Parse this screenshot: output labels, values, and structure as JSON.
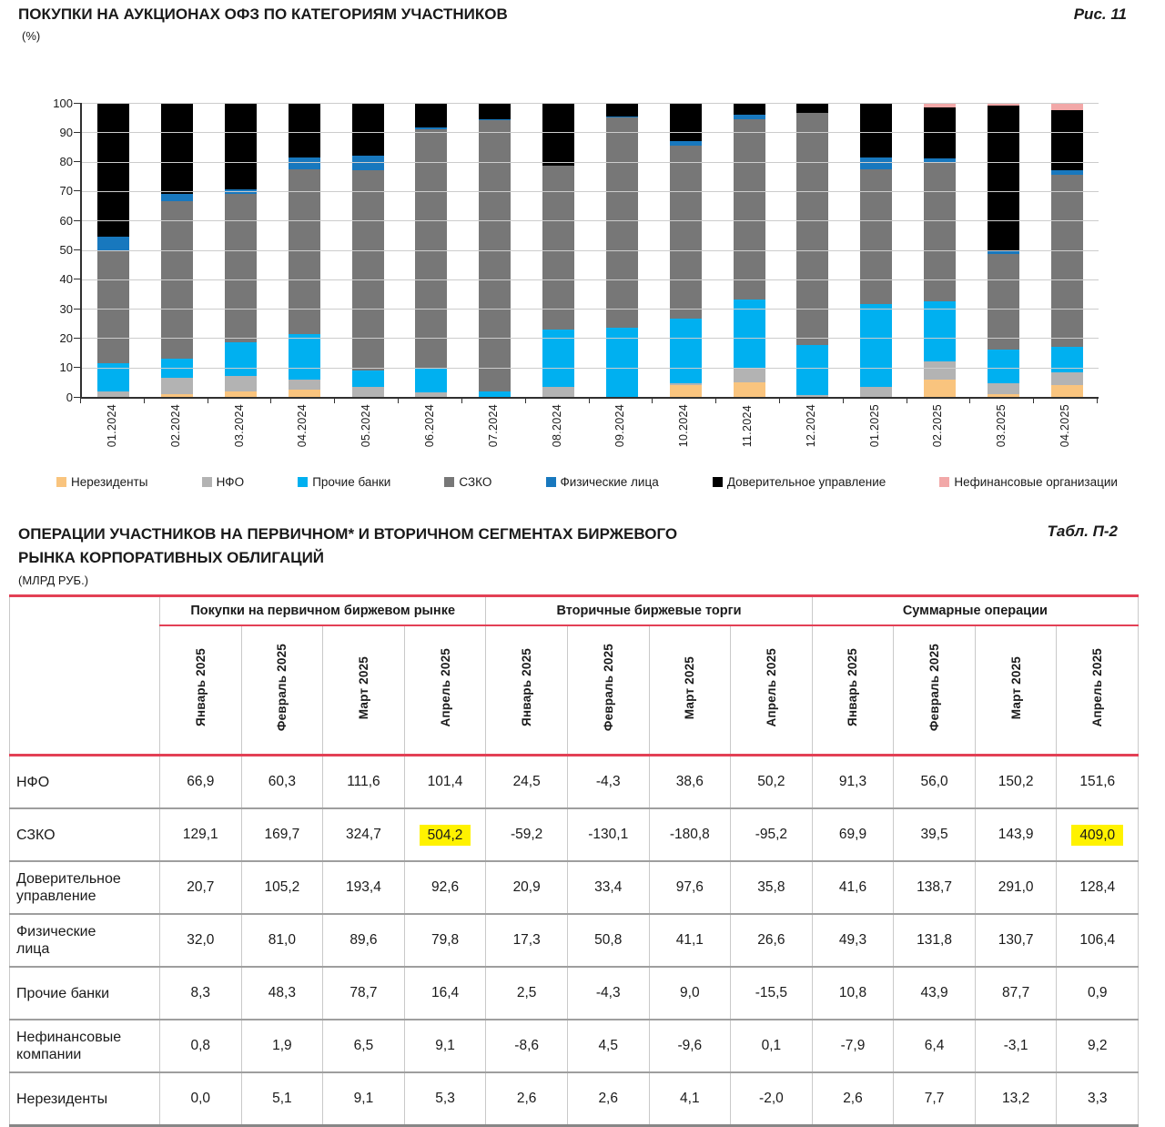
{
  "colors": {
    "accent_red": "#E34055",
    "highlight_yellow": "#FFF200",
    "grid": "#CCCCCC",
    "axis": "#303030"
  },
  "figure": {
    "title": "ПОКУПКИ НА АУКЦИОНАХ ОФЗ ПО КАТЕГОРИЯМ УЧАСТНИКОВ",
    "subtitle": "(%)",
    "ref": "Рис. 11"
  },
  "chart_data": {
    "type": "bar",
    "stacked": true,
    "title": "ПОКУПКИ НА АУКЦИОНАХ ОФЗ ПО КАТЕГОРИЯМ УЧАСТНИКОВ",
    "ylabel": "%",
    "ylim": [
      0,
      100
    ],
    "yticks": [
      0,
      10,
      20,
      30,
      40,
      50,
      60,
      70,
      80,
      90,
      100
    ],
    "grid": true,
    "legend_position": "bottom",
    "categories": [
      "01.2024",
      "02.2024",
      "03.2024",
      "04.2024",
      "05.2024",
      "06.2024",
      "07.2024",
      "08.2024",
      "09.2024",
      "10.2024",
      "11.2024",
      "12.2024",
      "01.2025",
      "02.2025",
      "03.2025",
      "04.2025"
    ],
    "series": [
      {
        "name": "Нерезиденты",
        "color": "#F9C47E",
        "values": [
          0,
          1,
          2,
          2.5,
          0,
          0,
          0,
          0,
          0,
          4,
          5,
          0,
          0,
          6,
          1,
          4
        ]
      },
      {
        "name": "НФО",
        "color": "#B3B3B3",
        "values": [
          2,
          5.5,
          5,
          3.5,
          3.5,
          1.5,
          0,
          3.5,
          0,
          0.5,
          5,
          0.5,
          3.5,
          6,
          3.5,
          4.5
        ]
      },
      {
        "name": "Прочие банки",
        "color": "#00B0F0",
        "values": [
          9.5,
          6.5,
          11.5,
          15.5,
          5.5,
          8,
          2,
          19.5,
          23.5,
          22,
          23,
          17,
          28,
          20.5,
          11.5,
          8.5
        ]
      },
      {
        "name": "СЗКО",
        "color": "#777777",
        "values": [
          38,
          53.5,
          50.5,
          56,
          68,
          81.5,
          92,
          55.5,
          71.5,
          59,
          61.5,
          79,
          46,
          47.5,
          32.5,
          58.5
        ]
      },
      {
        "name": "Физические лица",
        "color": "#1878BE",
        "values": [
          5,
          2.5,
          1.5,
          4,
          5,
          0.5,
          0.5,
          0,
          0.5,
          1.5,
          1.5,
          0,
          4,
          1,
          1,
          1.5
        ]
      },
      {
        "name": "Доверительное управление",
        "color": "#000000",
        "values": [
          45.5,
          31,
          29.5,
          18.5,
          18,
          8.5,
          5.5,
          21.5,
          4.5,
          13,
          4,
          3.5,
          18.5,
          17.5,
          49.5,
          20.5
        ]
      },
      {
        "name": "Нефинансовые организации",
        "color": "#F2A8A8",
        "values": [
          0,
          0,
          0,
          0,
          0,
          0,
          0,
          0,
          0,
          0,
          0,
          0,
          0,
          1.5,
          1,
          2.5
        ]
      }
    ]
  },
  "table": {
    "title_line1": "ОПЕРАЦИИ УЧАСТНИКОВ НА ПЕРВИЧНОМ* И ВТОРИЧНОМ СЕГМЕНТАХ БИРЖЕВОГО",
    "title_line2": "РЫНКА КОРПОРАТИВНЫХ ОБЛИГАЦИЙ",
    "units": "(МЛРД РУБ.)",
    "ref": "Табл. П-2",
    "groups": [
      "Покупки на первичном биржевом рынке",
      "Вторичные биржевые торги",
      "Суммарные операции"
    ],
    "months": [
      "Январь 2025",
      "Февраль 2025",
      "Март 2025",
      "Апрель 2025"
    ],
    "rows": [
      {
        "label": "НФО",
        "values": [
          "66,9",
          "60,3",
          "111,6",
          "101,4",
          "24,5",
          "-4,3",
          "38,6",
          "50,2",
          "91,3",
          "56,0",
          "150,2",
          "151,6"
        ],
        "highlight": []
      },
      {
        "label": "СЗКО",
        "values": [
          "129,1",
          "169,7",
          "324,7",
          "504,2",
          "-59,2",
          "-130,1",
          "-180,8",
          "-95,2",
          "69,9",
          "39,5",
          "143,9",
          "409,0"
        ],
        "highlight": [
          3,
          11
        ]
      },
      {
        "label": "Доверительное\nуправление",
        "values": [
          "20,7",
          "105,2",
          "193,4",
          "92,6",
          "20,9",
          "33,4",
          "97,6",
          "35,8",
          "41,6",
          "138,7",
          "291,0",
          "128,4"
        ],
        "highlight": []
      },
      {
        "label": "Физические\nлица",
        "values": [
          "32,0",
          "81,0",
          "89,6",
          "79,8",
          "17,3",
          "50,8",
          "41,1",
          "26,6",
          "49,3",
          "131,8",
          "130,7",
          "106,4"
        ],
        "highlight": []
      },
      {
        "label": "Прочие банки",
        "values": [
          "8,3",
          "48,3",
          "78,7",
          "16,4",
          "2,5",
          "-4,3",
          "9,0",
          "-15,5",
          "10,8",
          "43,9",
          "87,7",
          "0,9"
        ],
        "highlight": []
      },
      {
        "label": "Нефинансовые\nкомпании",
        "values": [
          "0,8",
          "1,9",
          "6,5",
          "9,1",
          "-8,6",
          "4,5",
          "-9,6",
          "0,1",
          "-7,9",
          "6,4",
          "-3,1",
          "9,2"
        ],
        "highlight": []
      },
      {
        "label": "Нерезиденты",
        "values": [
          "0,0",
          "5,1",
          "9,1",
          "5,3",
          "2,6",
          "2,6",
          "4,1",
          "-2,0",
          "2,6",
          "7,7",
          "13,2",
          "3,3"
        ],
        "highlight": []
      }
    ]
  }
}
